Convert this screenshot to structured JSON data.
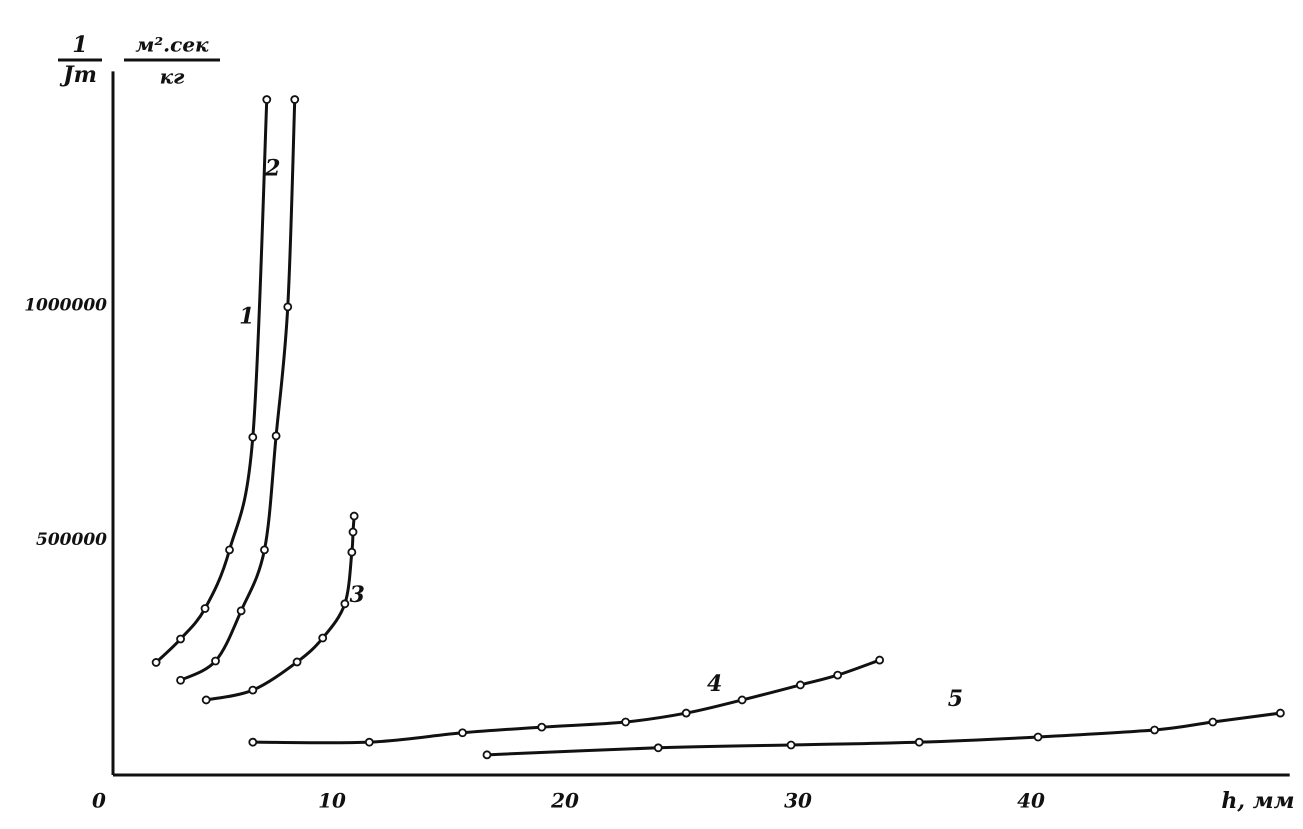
{
  "chart_data": {
    "type": "line",
    "y_label_numerator": "1",
    "y_label_denominator": "Jm",
    "y_unit_numerator": "м².сек",
    "y_unit_denominator": "кг",
    "x_label": "h, мм",
    "xlim": [
      0,
      50.5
    ],
    "xticks": [
      0,
      10,
      20,
      30,
      40
    ],
    "ylim": [
      0,
      1500000
    ],
    "yticks": [
      500000,
      1000000
    ],
    "grid": false,
    "series": [
      {
        "name": "1",
        "color": "#111111",
        "x": [
          1.85,
          2.9,
          3.95,
          5.0,
          6.0,
          6.6
        ],
        "values": [
          240000,
          290000,
          355000,
          480000,
          720000,
          1440000
        ]
      },
      {
        "name": "2",
        "color": "#111111",
        "x": [
          2.9,
          4.4,
          5.5,
          6.5,
          7.0,
          7.5,
          7.8
        ],
        "values": [
          202000,
          243000,
          350000,
          480000,
          723000,
          998000,
          1440000
        ]
      },
      {
        "name": "3",
        "color": "#111111",
        "x": [
          4.0,
          6.0,
          7.9,
          9.0,
          9.95,
          10.25,
          10.3,
          10.35
        ],
        "values": [
          160000,
          181000,
          241000,
          292000,
          365000,
          475000,
          518000,
          552000
        ]
      },
      {
        "name": "4",
        "color": "#111111",
        "x": [
          6.0,
          11.0,
          15.0,
          18.4,
          22.0,
          24.6,
          27.0,
          29.5,
          31.1,
          32.9
        ],
        "values": [
          70000,
          70000,
          90000,
          102000,
          113000,
          132000,
          160000,
          192000,
          213000,
          245000
        ]
      },
      {
        "name": "5",
        "color": "#111111",
        "x": [
          16.05,
          23.4,
          29.1,
          34.6,
          39.7,
          44.7,
          47.2,
          50.1
        ],
        "values": [
          43000,
          58000,
          64000,
          70000,
          81000,
          96000,
          113000,
          132000
        ]
      }
    ]
  }
}
